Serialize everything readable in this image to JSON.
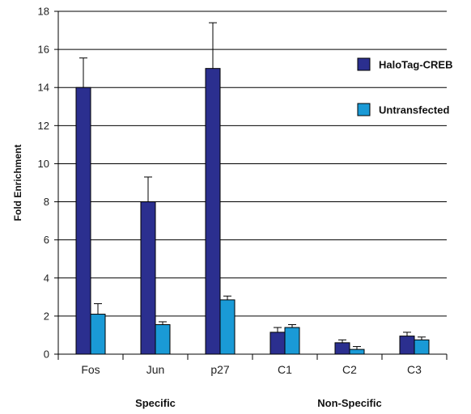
{
  "chart_data": {
    "type": "bar",
    "categories": [
      "Fos",
      "Jun",
      "p27",
      "C1",
      "C2",
      "C3"
    ],
    "series": [
      {
        "name": "HaloTag-CREB",
        "color": "#2b2f8f",
        "values": [
          14.0,
          8.0,
          15.0,
          1.15,
          0.6,
          0.95
        ],
        "errors": [
          1.55,
          1.3,
          2.4,
          0.25,
          0.15,
          0.2
        ]
      },
      {
        "name": "Untransfected",
        "color": "#1a9ad6",
        "values": [
          2.1,
          1.55,
          2.85,
          1.4,
          0.25,
          0.75
        ],
        "errors": [
          0.55,
          0.15,
          0.2,
          0.15,
          0.15,
          0.15
        ]
      }
    ],
    "ylabel": "Fold Enrichment",
    "xlabel": "",
    "ylim": [
      0,
      18
    ],
    "yticks": [
      0,
      2,
      4,
      6,
      8,
      10,
      12,
      14,
      16,
      18
    ],
    "groups": [
      {
        "label": "Specific",
        "categories": [
          "Fos",
          "Jun",
          "p27"
        ]
      },
      {
        "label": "Non-Specific",
        "categories": [
          "C1",
          "C2",
          "C3"
        ]
      }
    ],
    "grid": true,
    "legend": "top-right"
  }
}
